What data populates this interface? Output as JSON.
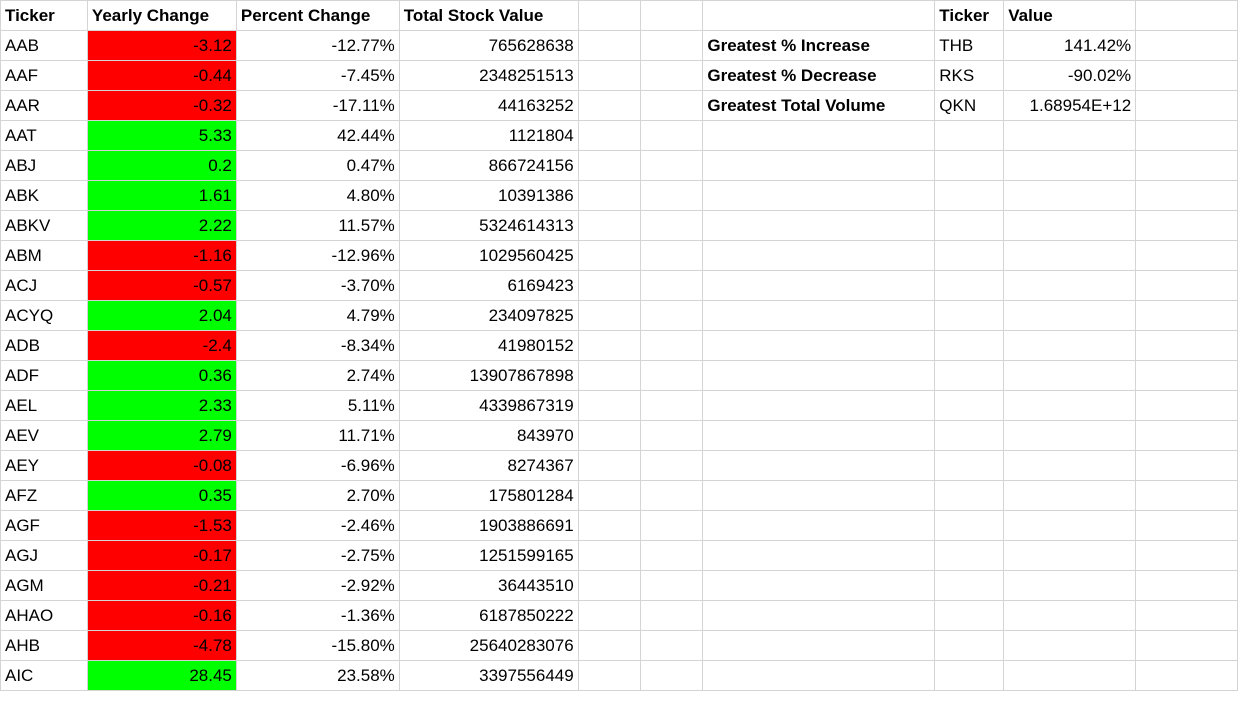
{
  "headers": {
    "ticker": "Ticker",
    "yearly_change": "Yearly Change",
    "percent_change": "Percent Change",
    "total_stock_value": "Total Stock Value"
  },
  "rows": [
    {
      "ticker": "AAB",
      "yearly_change": "-3.12",
      "percent_change": "-12.77%",
      "total_stock_value": "765628638",
      "status": "negative"
    },
    {
      "ticker": "AAF",
      "yearly_change": "-0.44",
      "percent_change": "-7.45%",
      "total_stock_value": "2348251513",
      "status": "negative"
    },
    {
      "ticker": "AAR",
      "yearly_change": "-0.32",
      "percent_change": "-17.11%",
      "total_stock_value": "44163252",
      "status": "negative"
    },
    {
      "ticker": "AAT",
      "yearly_change": "5.33",
      "percent_change": "42.44%",
      "total_stock_value": "1121804",
      "status": "positive"
    },
    {
      "ticker": "ABJ",
      "yearly_change": "0.2",
      "percent_change": "0.47%",
      "total_stock_value": "866724156",
      "status": "positive"
    },
    {
      "ticker": "ABK",
      "yearly_change": "1.61",
      "percent_change": "4.80%",
      "total_stock_value": "10391386",
      "status": "positive"
    },
    {
      "ticker": "ABKV",
      "yearly_change": "2.22",
      "percent_change": "11.57%",
      "total_stock_value": "5324614313",
      "status": "positive"
    },
    {
      "ticker": "ABM",
      "yearly_change": "-1.16",
      "percent_change": "-12.96%",
      "total_stock_value": "1029560425",
      "status": "negative"
    },
    {
      "ticker": "ACJ",
      "yearly_change": "-0.57",
      "percent_change": "-3.70%",
      "total_stock_value": "6169423",
      "status": "negative"
    },
    {
      "ticker": "ACYQ",
      "yearly_change": "2.04",
      "percent_change": "4.79%",
      "total_stock_value": "234097825",
      "status": "positive"
    },
    {
      "ticker": "ADB",
      "yearly_change": "-2.4",
      "percent_change": "-8.34%",
      "total_stock_value": "41980152",
      "status": "negative"
    },
    {
      "ticker": "ADF",
      "yearly_change": "0.36",
      "percent_change": "2.74%",
      "total_stock_value": "13907867898",
      "status": "positive"
    },
    {
      "ticker": "AEL",
      "yearly_change": "2.33",
      "percent_change": "5.11%",
      "total_stock_value": "4339867319",
      "status": "positive"
    },
    {
      "ticker": "AEV",
      "yearly_change": "2.79",
      "percent_change": "11.71%",
      "total_stock_value": "843970",
      "status": "positive"
    },
    {
      "ticker": "AEY",
      "yearly_change": "-0.08",
      "percent_change": "-6.96%",
      "total_stock_value": "8274367",
      "status": "negative"
    },
    {
      "ticker": "AFZ",
      "yearly_change": "0.35",
      "percent_change": "2.70%",
      "total_stock_value": "175801284",
      "status": "positive"
    },
    {
      "ticker": "AGF",
      "yearly_change": "-1.53",
      "percent_change": "-2.46%",
      "total_stock_value": "1903886691",
      "status": "negative"
    },
    {
      "ticker": "AGJ",
      "yearly_change": "-0.17",
      "percent_change": "-2.75%",
      "total_stock_value": "1251599165",
      "status": "negative"
    },
    {
      "ticker": "AGM",
      "yearly_change": "-0.21",
      "percent_change": "-2.92%",
      "total_stock_value": "36443510",
      "status": "negative"
    },
    {
      "ticker": "AHAO",
      "yearly_change": "-0.16",
      "percent_change": "-1.36%",
      "total_stock_value": "6187850222",
      "status": "negative"
    },
    {
      "ticker": "AHB",
      "yearly_change": "-4.78",
      "percent_change": "-15.80%",
      "total_stock_value": "25640283076",
      "status": "negative"
    },
    {
      "ticker": "AIC",
      "yearly_change": "28.45",
      "percent_change": "23.58%",
      "total_stock_value": "3397556449",
      "status": "positive"
    }
  ],
  "summary": {
    "headers": {
      "ticker": "Ticker",
      "value": "Value"
    },
    "rows": [
      {
        "label": "Greatest % Increase",
        "ticker": "THB",
        "value": "141.42%"
      },
      {
        "label": "Greatest % Decrease",
        "ticker": "RKS",
        "value": "-90.02%"
      },
      {
        "label": "Greatest Total Volume",
        "ticker": "QKN",
        "value": "1.68954E+12"
      }
    ]
  },
  "colors": {
    "negative": "#ff0000",
    "positive": "#00ff00",
    "gridline": "#d4d4d4"
  }
}
